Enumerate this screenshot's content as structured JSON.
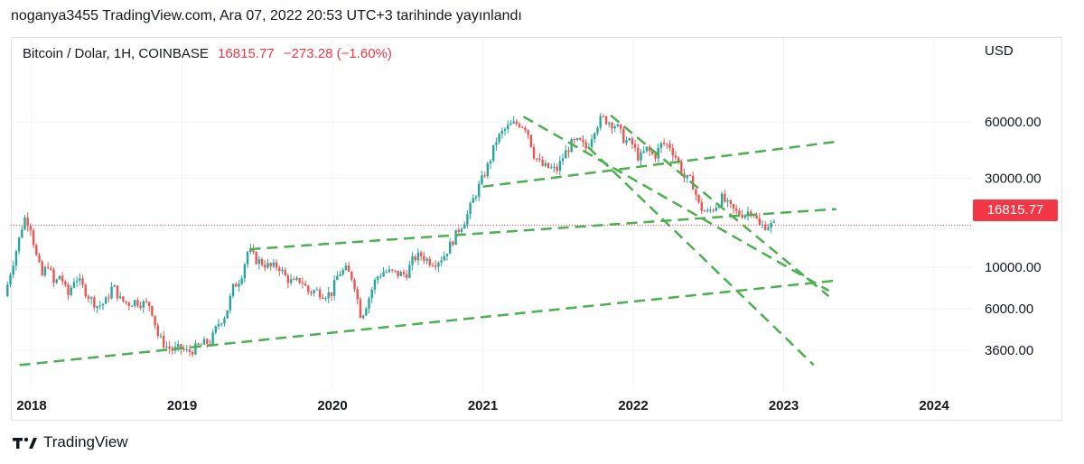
{
  "header": {
    "text": "noganya3455 TradingView.com, Ara 07, 2022 20:53 UTC+3 tarihinde yayınlandı"
  },
  "legend": {
    "symbol": "Bitcoin / Dolar, 1H, COINBASE",
    "last": "16815.77",
    "change": "−273.28 (−1.60%)"
  },
  "axis": {
    "unit": "USD",
    "price_tag": "16815.77"
  },
  "footer": {
    "brand": "TradingView",
    "logo_icon": "tradingview-logo-icon"
  },
  "colors": {
    "up": "#26a69a",
    "down": "#ef5350",
    "trend": "#4caf50",
    "price_line": "#f23645"
  },
  "chart_data": {
    "type": "candlestick",
    "title": "Bitcoin / Dolar, 1H, COINBASE",
    "y_scale": "log",
    "y_ticks": [
      60000,
      30000,
      10000,
      6000,
      3600
    ],
    "y_tick_labels": [
      "60000.00",
      "30000.00",
      "10000.00",
      "6000.00",
      "3600.00"
    ],
    "x_ticks": [
      "2018",
      "2019",
      "2020",
      "2021",
      "2022",
      "2023",
      "2024"
    ],
    "x_tick_values": [
      2018.0,
      2019.0,
      2020.0,
      2021.0,
      2022.0,
      2023.0,
      2024.0
    ],
    "last_price": 16815.77,
    "price_path": [
      [
        2017.83,
        7000
      ],
      [
        2017.87,
        9500
      ],
      [
        2017.92,
        13500
      ],
      [
        2017.96,
        18500
      ],
      [
        2018.0,
        17000
      ],
      [
        2018.04,
        11500
      ],
      [
        2018.08,
        9000
      ],
      [
        2018.12,
        10500
      ],
      [
        2018.16,
        8000
      ],
      [
        2018.2,
        9200
      ],
      [
        2018.25,
        7000
      ],
      [
        2018.3,
        9000
      ],
      [
        2018.35,
        7800
      ],
      [
        2018.4,
        6800
      ],
      [
        2018.45,
        6200
      ],
      [
        2018.5,
        6500
      ],
      [
        2018.55,
        8000
      ],
      [
        2018.6,
        6700
      ],
      [
        2018.65,
        6400
      ],
      [
        2018.7,
        6600
      ],
      [
        2018.75,
        6400
      ],
      [
        2018.8,
        6300
      ],
      [
        2018.85,
        4300
      ],
      [
        2018.9,
        3800
      ],
      [
        2018.95,
        3600
      ],
      [
        2019.0,
        3700
      ],
      [
        2019.05,
        3500
      ],
      [
        2019.1,
        3700
      ],
      [
        2019.15,
        3900
      ],
      [
        2019.2,
        4000
      ],
      [
        2019.25,
        5000
      ],
      [
        2019.3,
        5600
      ],
      [
        2019.35,
        7800
      ],
      [
        2019.4,
        8800
      ],
      [
        2019.45,
        12500
      ],
      [
        2019.5,
        11000
      ],
      [
        2019.55,
        10500
      ],
      [
        2019.6,
        10000
      ],
      [
        2019.65,
        10200
      ],
      [
        2019.7,
        8800
      ],
      [
        2019.75,
        8200
      ],
      [
        2019.8,
        8600
      ],
      [
        2019.85,
        7400
      ],
      [
        2019.9,
        7500
      ],
      [
        2019.95,
        7200
      ],
      [
        2020.0,
        7200
      ],
      [
        2020.05,
        9300
      ],
      [
        2020.1,
        9700
      ],
      [
        2020.15,
        8600
      ],
      [
        2020.2,
        5400
      ],
      [
        2020.25,
        6800
      ],
      [
        2020.3,
        8800
      ],
      [
        2020.35,
        9500
      ],
      [
        2020.4,
        9400
      ],
      [
        2020.45,
        9200
      ],
      [
        2020.5,
        9200
      ],
      [
        2020.55,
        11200
      ],
      [
        2020.6,
        11600
      ],
      [
        2020.65,
        10800
      ],
      [
        2020.7,
        10700
      ],
      [
        2020.75,
        11500
      ],
      [
        2020.8,
        13500
      ],
      [
        2020.85,
        16000
      ],
      [
        2020.9,
        18500
      ],
      [
        2020.95,
        23500
      ],
      [
        2021.0,
        29000
      ],
      [
        2021.05,
        36000
      ],
      [
        2021.1,
        48000
      ],
      [
        2021.15,
        54000
      ],
      [
        2021.2,
        58000
      ],
      [
        2021.25,
        59000
      ],
      [
        2021.3,
        56000
      ],
      [
        2021.35,
        40000
      ],
      [
        2021.4,
        35000
      ],
      [
        2021.45,
        34000
      ],
      [
        2021.5,
        33000
      ],
      [
        2021.55,
        40000
      ],
      [
        2021.6,
        46000
      ],
      [
        2021.65,
        47000
      ],
      [
        2021.7,
        43000
      ],
      [
        2021.75,
        55000
      ],
      [
        2021.8,
        63000
      ],
      [
        2021.85,
        60000
      ],
      [
        2021.9,
        57000
      ],
      [
        2021.95,
        48000
      ],
      [
        2022.0,
        46000
      ],
      [
        2022.05,
        38000
      ],
      [
        2022.1,
        43000
      ],
      [
        2022.15,
        39000
      ],
      [
        2022.2,
        46000
      ],
      [
        2022.25,
        45000
      ],
      [
        2022.3,
        38000
      ],
      [
        2022.35,
        30000
      ],
      [
        2022.4,
        29000
      ],
      [
        2022.45,
        21000
      ],
      [
        2022.5,
        19500
      ],
      [
        2022.55,
        21000
      ],
      [
        2022.6,
        23500
      ],
      [
        2022.65,
        21000
      ],
      [
        2022.7,
        19500
      ],
      [
        2022.75,
        19300
      ],
      [
        2022.8,
        20500
      ],
      [
        2022.85,
        16500
      ],
      [
        2022.88,
        16800
      ],
      [
        2022.93,
        16815.77
      ]
    ],
    "trendlines": [
      {
        "from": [
          2017.92,
          3000
        ],
        "to": [
          2023.35,
          8500
        ]
      },
      {
        "from": [
          2019.45,
          12500
        ],
        "to": [
          2023.35,
          20500
        ]
      },
      {
        "from": [
          2021.0,
          27000
        ],
        "to": [
          2023.35,
          47000
        ]
      },
      {
        "from": [
          2021.27,
          64000
        ],
        "to": [
          2023.3,
          7500
        ]
      },
      {
        "from": [
          2021.85,
          65000
        ],
        "to": [
          2023.3,
          7000
        ]
      },
      {
        "from": [
          2021.7,
          44000
        ],
        "to": [
          2023.2,
          3000
        ]
      }
    ]
  }
}
